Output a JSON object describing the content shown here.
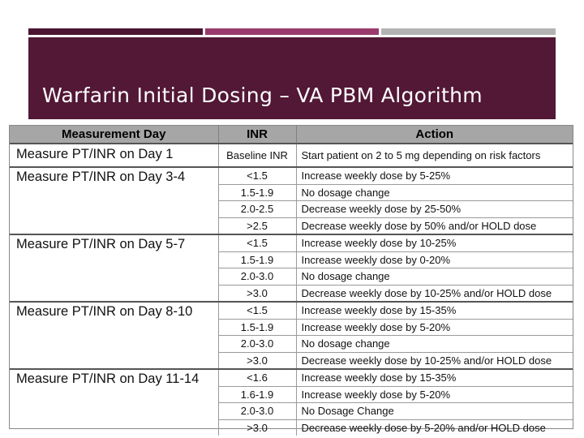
{
  "title": "Warfarin Initial Dosing – VA PBM Algorithm",
  "colors": {
    "title_band": "#521836",
    "accent_1": "#4b1430",
    "accent_2": "#9a3a6c",
    "accent_3": "#b3b3b3",
    "header_bg": "#a6a6a6"
  },
  "table": {
    "headers": [
      "Measurement Day",
      "INR",
      "Action"
    ],
    "groups": [
      {
        "day": "Measure PT/INR on Day 1",
        "rows": [
          {
            "inr": "Baseline INR",
            "action": "Start patient on 2 to 5 mg depending on risk factors"
          }
        ]
      },
      {
        "day": "Measure PT/INR on Day 3-4",
        "rows": [
          {
            "inr": "<1.5",
            "action": "Increase weekly dose by 5-25%"
          },
          {
            "inr": "1.5-1.9",
            "action": "No dosage change"
          },
          {
            "inr": "2.0-2.5",
            "action": "Decrease weekly dose by 25-50%"
          },
          {
            "inr": ">2.5",
            "action": "Decrease weekly dose by 50% and/or HOLD dose"
          }
        ]
      },
      {
        "day": "Measure PT/INR on Day 5-7",
        "rows": [
          {
            "inr": "<1.5",
            "action": "Increase weekly dose by 10-25%"
          },
          {
            "inr": "1.5-1.9",
            "action": "Increase weekly dose by 0-20%"
          },
          {
            "inr": "2.0-3.0",
            "action": "No dosage change"
          },
          {
            "inr": ">3.0",
            "action": "Decrease weekly dose by 10-25% and/or HOLD dose"
          }
        ]
      },
      {
        "day": "Measure PT/INR on Day 8-10",
        "rows": [
          {
            "inr": "<1.5",
            "action": "Increase weekly dose by 15-35%"
          },
          {
            "inr": "1.5-1.9",
            "action": "Increase weekly dose by 5-20%"
          },
          {
            "inr": "2.0-3.0",
            "action": "No dosage change"
          },
          {
            "inr": ">3.0",
            "action": "Decrease weekly dose by 10-25% and/or HOLD dose"
          }
        ]
      },
      {
        "day": "Measure PT/INR on Day 11-14",
        "rows": [
          {
            "inr": "<1.6",
            "action": "Increase weekly dose by 15-35%"
          },
          {
            "inr": "1.6-1.9",
            "action": "Increase weekly dose by 5-20%"
          },
          {
            "inr": "2.0-3.0",
            "action": "No Dosage Change"
          },
          {
            "inr": ">3.0",
            "action": "Decrease weekly dose by 5-20% and/or HOLD dose"
          }
        ]
      }
    ]
  }
}
